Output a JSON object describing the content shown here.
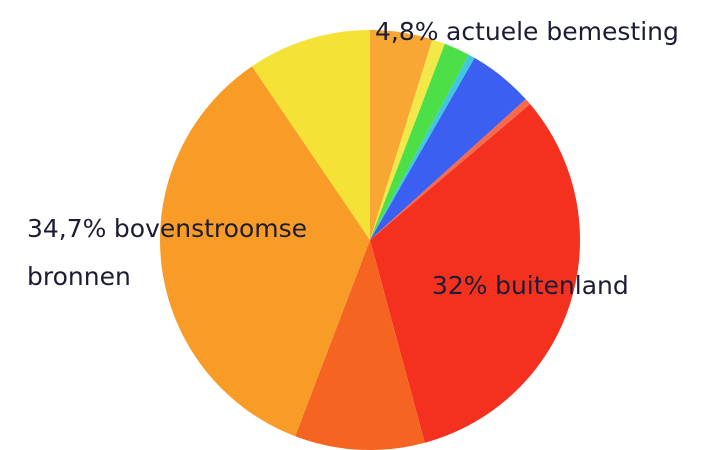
{
  "chart_data": {
    "type": "pie",
    "categories": [
      "actuele bemesting",
      null,
      null,
      null,
      null,
      null,
      "buitenland",
      null,
      "bovenstroomse bronnen",
      null
    ],
    "values": [
      4.8,
      1,
      2,
      0.5,
      5,
      0.5,
      32,
      10,
      34.7,
      9.5
    ],
    "value_labels": [
      "4,8%",
      null,
      null,
      null,
      null,
      null,
      "32%",
      null,
      "34,7%",
      null
    ],
    "colors": [
      "#f8a634",
      "#f3e84a",
      "#4ddf48",
      "#40c8e0",
      "#3b5ff0",
      "#f86a4a",
      "#f4301f",
      "#f66421",
      "#f89c27",
      "#f5e236"
    ]
  }
}
